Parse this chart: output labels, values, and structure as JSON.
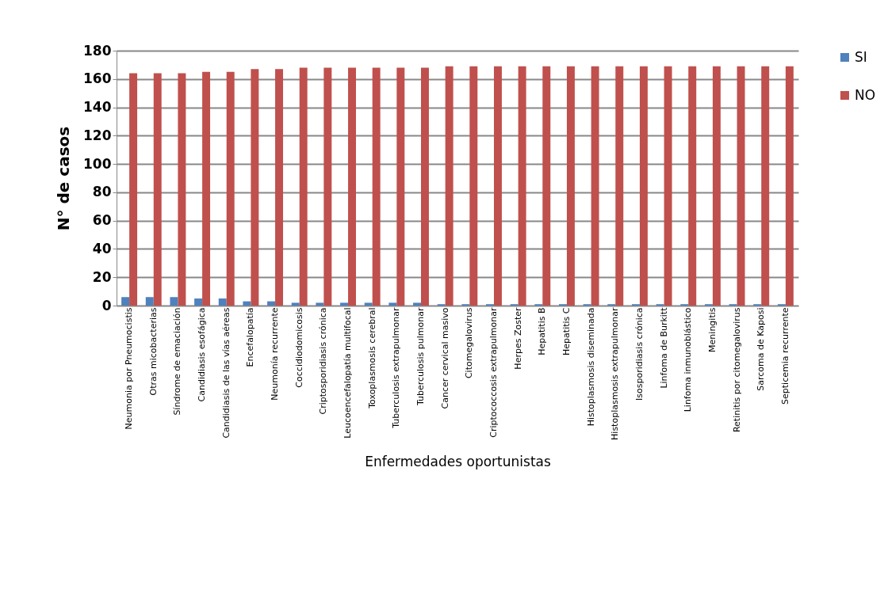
{
  "chart_data": {
    "type": "bar",
    "xlabel": "Enfermedades oportunistas",
    "ylabel": "N° de casos",
    "categories": [
      "Neumonia por Pneumocistis",
      "Otras micobacterias",
      "Síndrome de emaciación",
      "Candidiasis esofágica",
      "Candidiasis de las vías aéreas",
      "Encefalopatía",
      "Neumonía recurrente",
      "Coccidiodomicosis",
      "Criptosporidiasis crónica",
      "Leucoencefalopatía multifocal",
      "Toxoplasmosis cerebral",
      "Tuberculosis extrapulmonar",
      "Tuberculosis pulmonar",
      "Cancer cervical masivo",
      "Citomegalovirus",
      "Criptococcosis extrapulmonar",
      "Herpes Zoster",
      "Hepatitis B",
      "Hepatitis C",
      "Histoplasmosis diseminada",
      "Histoplasmosis extrapulmonar",
      "Isosporidiasis crónica",
      "Linfoma de Burkitt",
      "Linfoma inmunoblástico",
      "Meningitis",
      "Retinitis por citomegalovirus",
      "Sarcoma de Kaposi",
      "Septicemia recurrente"
    ],
    "series": [
      {
        "name": "SI",
        "color": "#4f81bd",
        "values": [
          6,
          6,
          6,
          5,
          5,
          3,
          3,
          2,
          2,
          2,
          2,
          2,
          2,
          1,
          1,
          1,
          1,
          1,
          1,
          1,
          1,
          1,
          1,
          1,
          1,
          1,
          1,
          1
        ]
      },
      {
        "name": "NO",
        "color": "#c0504d",
        "values": [
          164,
          164,
          164,
          165,
          165,
          167,
          167,
          168,
          168,
          168,
          168,
          168,
          168,
          169,
          169,
          169,
          169,
          169,
          169,
          169,
          169,
          169,
          169,
          169,
          169,
          169,
          169,
          169
        ]
      }
    ],
    "ylim": [
      0,
      180
    ],
    "yticks": [
      0,
      20,
      40,
      60,
      80,
      100,
      120,
      140,
      160,
      180
    ],
    "grid": "y",
    "legend": "right"
  }
}
